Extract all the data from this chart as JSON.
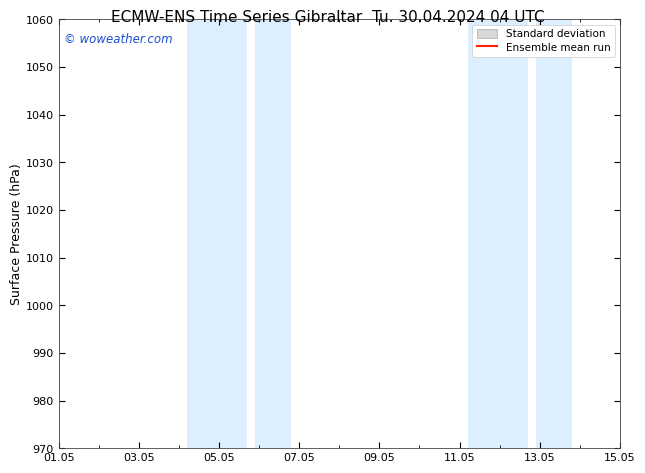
{
  "title": "ECMW-ENS Time Series Gibraltar",
  "title2": "Tu. 30.04.2024 04 UTC",
  "ylabel": "Surface Pressure (hPa)",
  "ylim": [
    970,
    1060
  ],
  "yticks": [
    970,
    980,
    990,
    1000,
    1010,
    1020,
    1030,
    1040,
    1050,
    1060
  ],
  "xlim": [
    0,
    14
  ],
  "xtick_labels": [
    "01.05",
    "03.05",
    "05.05",
    "07.05",
    "09.05",
    "11.05",
    "13.05",
    "15.05"
  ],
  "xtick_positions": [
    0,
    2,
    4,
    6,
    8,
    10,
    12,
    14
  ],
  "watermark": "© woweather.com",
  "watermark_color": "#1c4fcc",
  "bg_color": "#ffffff",
  "plot_bg_color": "#ffffff",
  "band_color": "#ddeeff",
  "bands": [
    {
      "start": 3.2,
      "end": 4.7
    },
    {
      "start": 4.9,
      "end": 5.8
    },
    {
      "start": 10.2,
      "end": 11.7
    },
    {
      "start": 11.9,
      "end": 12.8
    }
  ],
  "legend_std_color": "#d8d8d8",
  "legend_std_edge": "#aaaaaa",
  "legend_mean_color": "#ff2200",
  "title_fontsize": 11,
  "tick_fontsize": 8,
  "ylabel_fontsize": 9
}
